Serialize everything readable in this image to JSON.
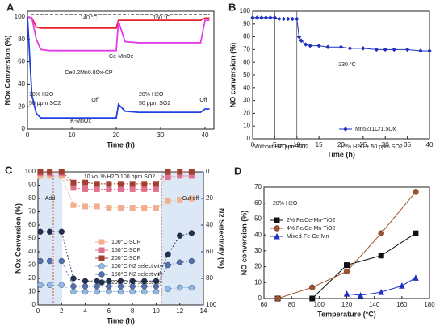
{
  "chart_data": [
    {
      "type": "line",
      "label": "A",
      "xlabel": "Time (h)",
      "ylabel": "NOx Conversion (%)",
      "xlim": [
        0,
        42
      ],
      "xticks": [
        0,
        10,
        20,
        30,
        40
      ],
      "ylim": [
        0,
        105
      ],
      "yticks": [
        0,
        20,
        40,
        60,
        80,
        100
      ],
      "x": [
        0,
        1,
        2,
        3,
        5,
        10,
        15,
        20,
        20.5,
        22,
        25,
        30,
        35,
        39,
        40,
        41
      ],
      "series": [
        {
          "name": "Ce-MnOx",
          "color": "#e8202a",
          "values": [
            100,
            99,
            91,
            90,
            90,
            90,
            90,
            90,
            97,
            97,
            97,
            97,
            97,
            97,
            99,
            99
          ]
        },
        {
          "name": "Ce0.2Mn0.8Ox-CP",
          "color": "#e83ce8",
          "values": [
            100,
            99,
            80,
            71,
            70,
            70,
            70,
            70,
            96,
            78,
            77,
            77,
            77,
            77,
            97,
            97
          ]
        },
        {
          "name": "K-MnOx",
          "color": "#2040e0",
          "values": [
            100,
            30,
            14,
            10,
            10,
            10,
            10,
            10,
            22,
            16,
            15,
            15,
            15,
            15,
            18,
            18
          ]
        }
      ],
      "annotations": [
        "140 °C",
        "150 °C",
        "10% H2O",
        "50 ppm SO2",
        "Off",
        "20% H2O",
        "50 ppm SO2",
        "Off"
      ]
    },
    {
      "type": "line",
      "label": "B",
      "xlabel": "Time (h)",
      "ylabel": "NO conversion (%)",
      "xlim": [
        0,
        40
      ],
      "xticks": [
        0,
        5,
        10,
        15,
        20,
        25,
        30,
        35,
        40
      ],
      "ylim": [
        0,
        100
      ],
      "yticks": [
        0,
        10,
        20,
        30,
        40,
        50,
        60,
        70,
        80,
        90,
        100
      ],
      "vlines": [
        5,
        10
      ],
      "series": [
        {
          "name": "Mn5Zr1Cr1.5Ox",
          "color": "#2030c0",
          "marker": "diamond",
          "x": [
            0,
            1,
            2,
            3,
            4,
            5,
            6,
            7,
            8,
            9,
            10,
            10.5,
            11,
            12,
            13,
            15,
            17,
            20,
            22,
            25,
            28,
            30,
            32,
            35,
            38,
            40
          ],
          "values": [
            95,
            95,
            95,
            95,
            95,
            95,
            94,
            94,
            94,
            94,
            94,
            80,
            77,
            74,
            73,
            73,
            72,
            72,
            71,
            71,
            70,
            70,
            70,
            70,
            69,
            69
          ]
        }
      ],
      "legend": "lower right",
      "annotations": [
        "230 °C",
        "Without H2O or SO2",
        "50 ppm SO2",
        "15% H2O + 50 ppm SO2"
      ]
    },
    {
      "type": "line",
      "label": "C",
      "xlabel": "Time (h)",
      "ylabel": "NOx Conversion (%)",
      "y2label": "N2 Selectivity (%)",
      "xlim": [
        0,
        14
      ],
      "xticks": [
        0,
        2,
        4,
        6,
        8,
        10,
        12,
        14
      ],
      "ylim": [
        0,
        100
      ],
      "yticks": [
        0,
        10,
        20,
        30,
        40,
        50,
        60,
        70,
        80,
        90,
        100
      ],
      "y2lim": [
        100,
        0
      ],
      "y2ticks": [
        0,
        20,
        40,
        60,
        80,
        100
      ],
      "x": [
        0.2,
        1,
        2,
        3,
        4,
        5,
        6,
        7,
        8,
        9,
        10,
        11,
        12,
        13
      ],
      "series": [
        {
          "name": "100°C-SCR",
          "color": "#f0b090",
          "marker": "square",
          "values": [
            97,
            97,
            97,
            75,
            74,
            74,
            73,
            73,
            73,
            73,
            73,
            78,
            79,
            80
          ]
        },
        {
          "name": "150°C-SCR",
          "color": "#e07090",
          "marker": "square",
          "values": [
            99,
            99,
            99,
            88,
            87,
            87,
            87,
            87,
            87,
            87,
            87,
            96,
            97,
            97
          ]
        },
        {
          "name": "200°C-SCR",
          "color": "#a04030",
          "marker": "square",
          "values": [
            100,
            100,
            100,
            92,
            92,
            91,
            91,
            91,
            91,
            91,
            91,
            100,
            100,
            100
          ]
        },
        {
          "name": "100°C-N2 selectivity",
          "color": "#90b8e8",
          "marker": "circle",
          "axis": "y2",
          "values": [
            85,
            85,
            85,
            90,
            90,
            90,
            90,
            90,
            90,
            90,
            90,
            88,
            87,
            87
          ]
        },
        {
          "name": "150°C-N2 selectivity",
          "color": "#5070b0",
          "marker": "circle",
          "axis": "y2",
          "values": [
            67,
            67,
            67,
            86,
            86,
            86,
            86,
            86,
            86,
            86,
            86,
            70,
            68,
            67
          ]
        },
        {
          "name": "200°C-N2 selectivity",
          "color": "#203050",
          "marker": "circle",
          "axis": "y2",
          "values": [
            45,
            45,
            45,
            80,
            82,
            82,
            82,
            82,
            82,
            82,
            82,
            62,
            48,
            46
          ]
        }
      ],
      "legend": "center",
      "annotations": [
        "10 vol % H2O 100 ppm SO2",
        "Add",
        "Cut off"
      ]
    },
    {
      "type": "line",
      "label": "D",
      "xlabel": "Temperature (°C)",
      "ylabel": "NO conversion (%)",
      "xlim": [
        60,
        180
      ],
      "xticks": [
        60,
        80,
        100,
        120,
        140,
        160,
        180
      ],
      "ylim": [
        0,
        70
      ],
      "yticks": [
        0,
        10,
        20,
        30,
        40,
        50,
        60,
        70
      ],
      "series": [
        {
          "name": "2% Fe/Ce-Mn-TiO2",
          "color": "#111111",
          "marker": "square",
          "x": [
            70,
            95,
            120,
            145,
            170
          ],
          "values": [
            0,
            0,
            21,
            27,
            41
          ]
        },
        {
          "name": "4% Fe/Ce-Mn-TiO2",
          "color": "#a0502a",
          "marker": "circle",
          "x": [
            70,
            95,
            120,
            145,
            170
          ],
          "values": [
            0,
            7,
            17,
            41,
            67
          ]
        },
        {
          "name": "Mixed-Fe-Ce-Mn",
          "color": "#2030c0",
          "marker": "triangle",
          "x": [
            120,
            130,
            145,
            160,
            170
          ],
          "values": [
            3,
            2,
            4,
            8,
            13
          ]
        }
      ],
      "legend": "upper left",
      "annotations": [
        "20% H2O"
      ]
    }
  ]
}
